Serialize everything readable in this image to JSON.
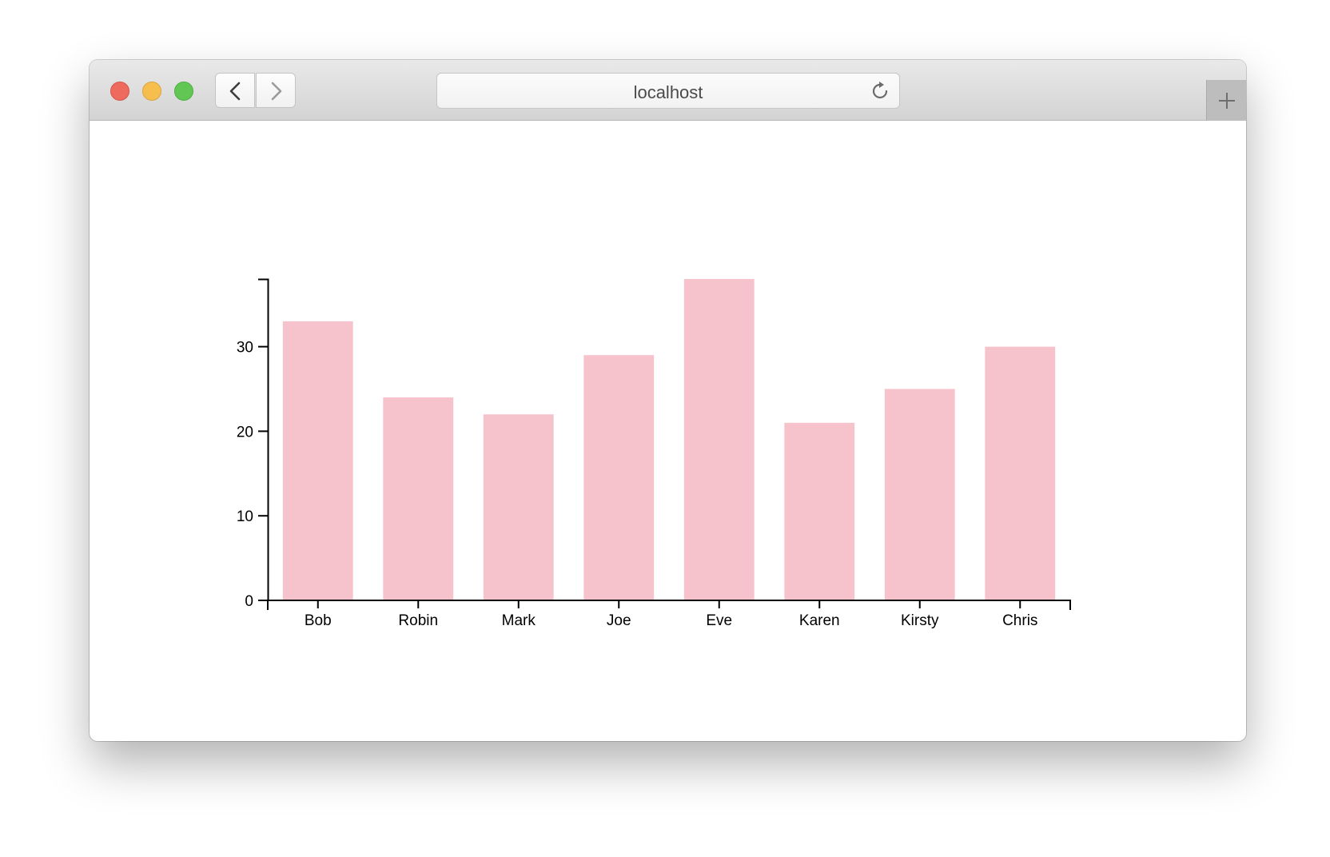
{
  "browser": {
    "url": "localhost",
    "icons": {
      "close": "close-window-icon",
      "minimize": "minimize-window-icon",
      "maximize": "maximize-window-icon",
      "back": "chevron-left-icon",
      "forward": "chevron-right-icon",
      "reload": "reload-icon",
      "new_tab": "plus-icon"
    }
  },
  "chart_data": {
    "type": "bar",
    "categories": [
      "Bob",
      "Robin",
      "Mark",
      "Joe",
      "Eve",
      "Karen",
      "Kirsty",
      "Chris"
    ],
    "values": [
      33,
      24,
      22,
      29,
      38,
      21,
      25,
      30
    ],
    "title": "",
    "xlabel": "",
    "ylabel": "",
    "ylim": [
      0,
      38
    ],
    "yticks": [
      0,
      10,
      20,
      30
    ],
    "grid": false,
    "bar_color": "#f6c3cc",
    "axis_color": "#000000"
  }
}
